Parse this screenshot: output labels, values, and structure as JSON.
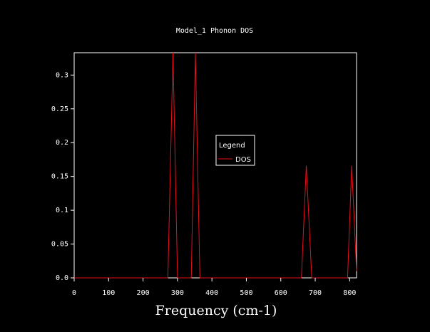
{
  "chart_data": {
    "type": "line",
    "title": "Model_1 Phonon DOS",
    "xlabel": "Frequency (cm-1)",
    "ylabel": "",
    "xlim": [
      0,
      820
    ],
    "ylim": [
      0,
      0.333
    ],
    "x_ticks": [
      "0",
      "100",
      "200",
      "300",
      "400",
      "500",
      "600",
      "700",
      "800"
    ],
    "y_ticks": [
      "0.0",
      "0.05",
      "0.1",
      "0.15",
      "0.2",
      "0.25",
      "0.3"
    ],
    "grid": false,
    "legend": {
      "title": "Legend",
      "position": "center",
      "entries": [
        "DOS"
      ]
    },
    "series": [
      {
        "name": "DOS",
        "color": "#e8101a",
        "x": [
          0,
          272,
          287,
          300,
          340,
          352,
          365,
          660,
          674,
          690,
          794,
          806,
          820
        ],
        "y": [
          0,
          0,
          0.335,
          0,
          0,
          0.335,
          0,
          0,
          0.166,
          0,
          0,
          0.166,
          0.01
        ]
      }
    ]
  },
  "colors": {
    "background": "#000000",
    "axes": "#ffffff",
    "text": "#ffffff",
    "series": "#e8101a"
  }
}
